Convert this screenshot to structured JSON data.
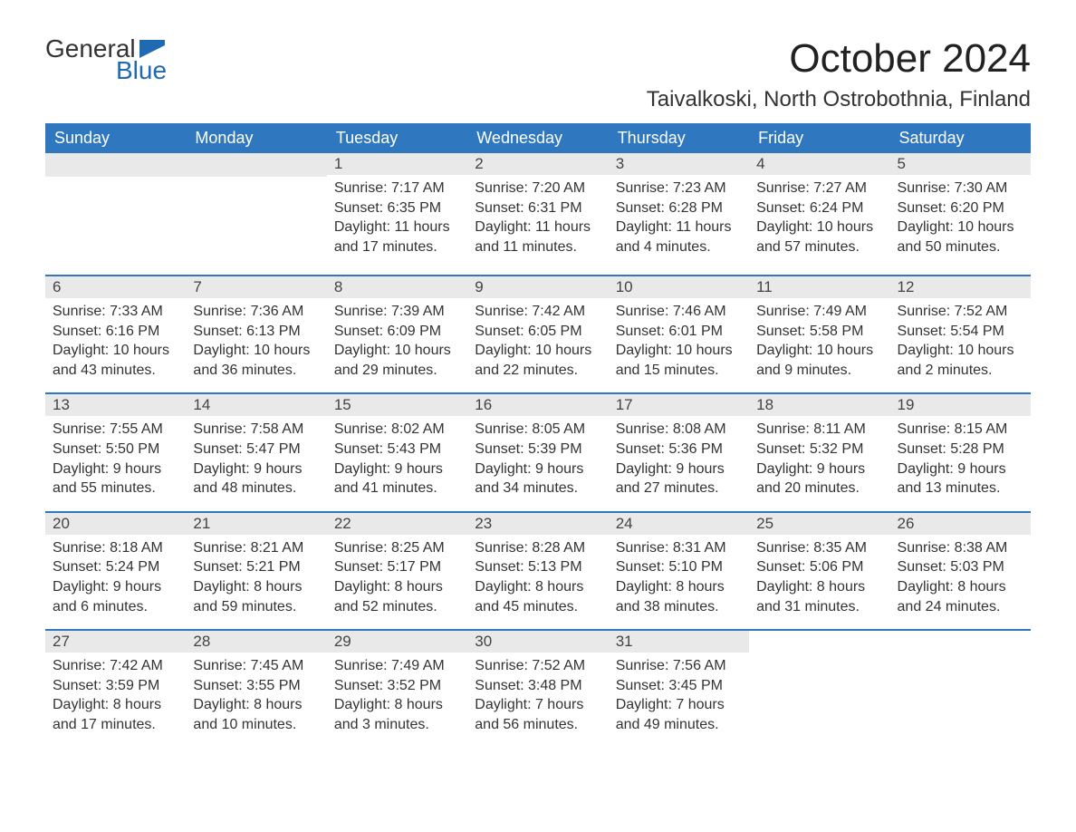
{
  "logo": {
    "text_general": "General",
    "text_blue": "Blue",
    "accent_color": "#1f6ab0",
    "general_color": "#333333"
  },
  "header": {
    "month_title": "October 2024",
    "location": "Taivalkoski, North Ostrobothnia, Finland",
    "title_fontsize": 44,
    "location_fontsize": 24
  },
  "colors": {
    "header_row_bg": "#2f78bf",
    "header_row_text": "#ffffff",
    "day_number_bg": "#e9e9e9",
    "day_number_text": "#444444",
    "body_text": "#333333",
    "week_divider": "#2f78bf",
    "page_bg": "#ffffff"
  },
  "weekdays": [
    "Sunday",
    "Monday",
    "Tuesday",
    "Wednesday",
    "Thursday",
    "Friday",
    "Saturday"
  ],
  "weeks": [
    [
      {
        "day": "",
        "sunrise": "",
        "sunset": "",
        "daylight": ""
      },
      {
        "day": "",
        "sunrise": "",
        "sunset": "",
        "daylight": ""
      },
      {
        "day": "1",
        "sunrise": "Sunrise: 7:17 AM",
        "sunset": "Sunset: 6:35 PM",
        "daylight": "Daylight: 11 hours and 17 minutes."
      },
      {
        "day": "2",
        "sunrise": "Sunrise: 7:20 AM",
        "sunset": "Sunset: 6:31 PM",
        "daylight": "Daylight: 11 hours and 11 minutes."
      },
      {
        "day": "3",
        "sunrise": "Sunrise: 7:23 AM",
        "sunset": "Sunset: 6:28 PM",
        "daylight": "Daylight: 11 hours and 4 minutes."
      },
      {
        "day": "4",
        "sunrise": "Sunrise: 7:27 AM",
        "sunset": "Sunset: 6:24 PM",
        "daylight": "Daylight: 10 hours and 57 minutes."
      },
      {
        "day": "5",
        "sunrise": "Sunrise: 7:30 AM",
        "sunset": "Sunset: 6:20 PM",
        "daylight": "Daylight: 10 hours and 50 minutes."
      }
    ],
    [
      {
        "day": "6",
        "sunrise": "Sunrise: 7:33 AM",
        "sunset": "Sunset: 6:16 PM",
        "daylight": "Daylight: 10 hours and 43 minutes."
      },
      {
        "day": "7",
        "sunrise": "Sunrise: 7:36 AM",
        "sunset": "Sunset: 6:13 PM",
        "daylight": "Daylight: 10 hours and 36 minutes."
      },
      {
        "day": "8",
        "sunrise": "Sunrise: 7:39 AM",
        "sunset": "Sunset: 6:09 PM",
        "daylight": "Daylight: 10 hours and 29 minutes."
      },
      {
        "day": "9",
        "sunrise": "Sunrise: 7:42 AM",
        "sunset": "Sunset: 6:05 PM",
        "daylight": "Daylight: 10 hours and 22 minutes."
      },
      {
        "day": "10",
        "sunrise": "Sunrise: 7:46 AM",
        "sunset": "Sunset: 6:01 PM",
        "daylight": "Daylight: 10 hours and 15 minutes."
      },
      {
        "day": "11",
        "sunrise": "Sunrise: 7:49 AM",
        "sunset": "Sunset: 5:58 PM",
        "daylight": "Daylight: 10 hours and 9 minutes."
      },
      {
        "day": "12",
        "sunrise": "Sunrise: 7:52 AM",
        "sunset": "Sunset: 5:54 PM",
        "daylight": "Daylight: 10 hours and 2 minutes."
      }
    ],
    [
      {
        "day": "13",
        "sunrise": "Sunrise: 7:55 AM",
        "sunset": "Sunset: 5:50 PM",
        "daylight": "Daylight: 9 hours and 55 minutes."
      },
      {
        "day": "14",
        "sunrise": "Sunrise: 7:58 AM",
        "sunset": "Sunset: 5:47 PM",
        "daylight": "Daylight: 9 hours and 48 minutes."
      },
      {
        "day": "15",
        "sunrise": "Sunrise: 8:02 AM",
        "sunset": "Sunset: 5:43 PM",
        "daylight": "Daylight: 9 hours and 41 minutes."
      },
      {
        "day": "16",
        "sunrise": "Sunrise: 8:05 AM",
        "sunset": "Sunset: 5:39 PM",
        "daylight": "Daylight: 9 hours and 34 minutes."
      },
      {
        "day": "17",
        "sunrise": "Sunrise: 8:08 AM",
        "sunset": "Sunset: 5:36 PM",
        "daylight": "Daylight: 9 hours and 27 minutes."
      },
      {
        "day": "18",
        "sunrise": "Sunrise: 8:11 AM",
        "sunset": "Sunset: 5:32 PM",
        "daylight": "Daylight: 9 hours and 20 minutes."
      },
      {
        "day": "19",
        "sunrise": "Sunrise: 8:15 AM",
        "sunset": "Sunset: 5:28 PM",
        "daylight": "Daylight: 9 hours and 13 minutes."
      }
    ],
    [
      {
        "day": "20",
        "sunrise": "Sunrise: 8:18 AM",
        "sunset": "Sunset: 5:24 PM",
        "daylight": "Daylight: 9 hours and 6 minutes."
      },
      {
        "day": "21",
        "sunrise": "Sunrise: 8:21 AM",
        "sunset": "Sunset: 5:21 PM",
        "daylight": "Daylight: 8 hours and 59 minutes."
      },
      {
        "day": "22",
        "sunrise": "Sunrise: 8:25 AM",
        "sunset": "Sunset: 5:17 PM",
        "daylight": "Daylight: 8 hours and 52 minutes."
      },
      {
        "day": "23",
        "sunrise": "Sunrise: 8:28 AM",
        "sunset": "Sunset: 5:13 PM",
        "daylight": "Daylight: 8 hours and 45 minutes."
      },
      {
        "day": "24",
        "sunrise": "Sunrise: 8:31 AM",
        "sunset": "Sunset: 5:10 PM",
        "daylight": "Daylight: 8 hours and 38 minutes."
      },
      {
        "day": "25",
        "sunrise": "Sunrise: 8:35 AM",
        "sunset": "Sunset: 5:06 PM",
        "daylight": "Daylight: 8 hours and 31 minutes."
      },
      {
        "day": "26",
        "sunrise": "Sunrise: 8:38 AM",
        "sunset": "Sunset: 5:03 PM",
        "daylight": "Daylight: 8 hours and 24 minutes."
      }
    ],
    [
      {
        "day": "27",
        "sunrise": "Sunrise: 7:42 AM",
        "sunset": "Sunset: 3:59 PM",
        "daylight": "Daylight: 8 hours and 17 minutes."
      },
      {
        "day": "28",
        "sunrise": "Sunrise: 7:45 AM",
        "sunset": "Sunset: 3:55 PM",
        "daylight": "Daylight: 8 hours and 10 minutes."
      },
      {
        "day": "29",
        "sunrise": "Sunrise: 7:49 AM",
        "sunset": "Sunset: 3:52 PM",
        "daylight": "Daylight: 8 hours and 3 minutes."
      },
      {
        "day": "30",
        "sunrise": "Sunrise: 7:52 AM",
        "sunset": "Sunset: 3:48 PM",
        "daylight": "Daylight: 7 hours and 56 minutes."
      },
      {
        "day": "31",
        "sunrise": "Sunrise: 7:56 AM",
        "sunset": "Sunset: 3:45 PM",
        "daylight": "Daylight: 7 hours and 49 minutes."
      },
      {
        "day": "",
        "sunrise": "",
        "sunset": "",
        "daylight": ""
      },
      {
        "day": "",
        "sunrise": "",
        "sunset": "",
        "daylight": ""
      }
    ]
  ]
}
